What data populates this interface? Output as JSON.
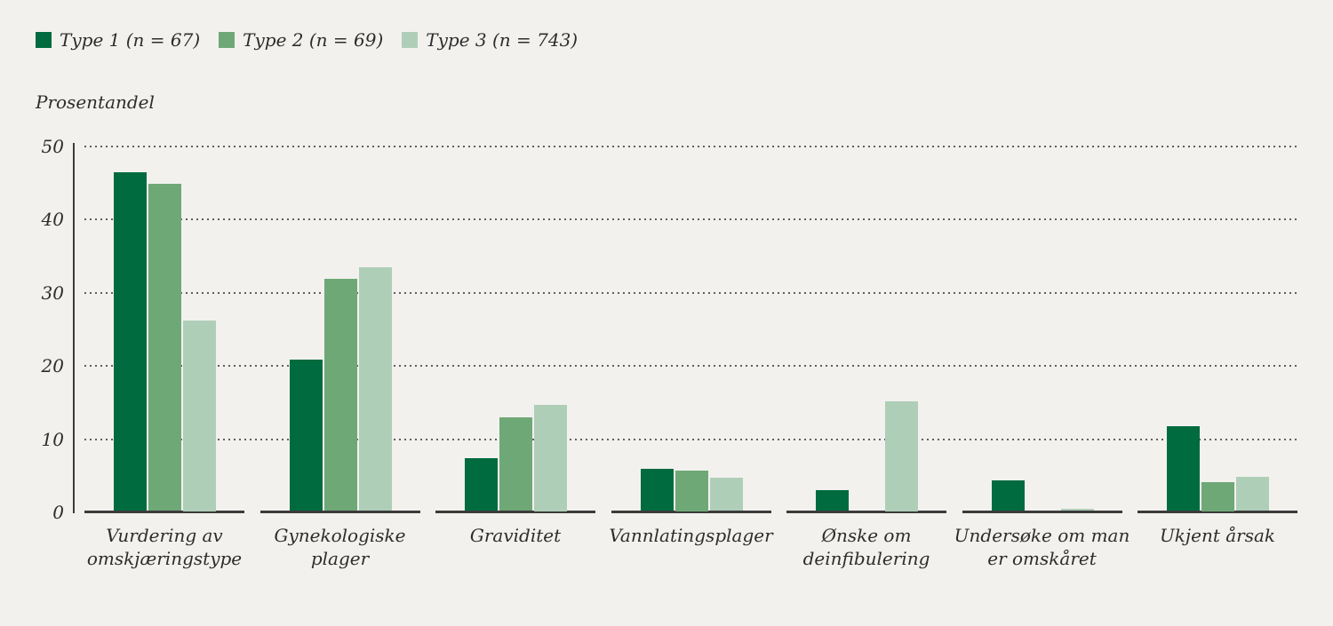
{
  "chart_data": {
    "type": "bar",
    "title": "",
    "ylabel": "Prosentandel",
    "ylim": [
      0,
      50
    ],
    "yticks": [
      0,
      10,
      20,
      30,
      40,
      50
    ],
    "grid": "horizontal dotted gridlines at 10, 20, 30, 40, 50",
    "legend_position": "top-left",
    "background_color": "#f2f1ee",
    "axis_color": "#3b3b3b",
    "categories": [
      "Vurdering av omskjæringstype",
      "Gynekologiske plager",
      "Graviditet",
      "Vannlatingsplager",
      "Ønske om deinfibulering",
      "Undersøke om man er omskåret",
      "Ukjent årsak"
    ],
    "category_label_lines": [
      [
        "Vurdering av",
        "omskjæringstype"
      ],
      [
        "Gynekologiske",
        "plager"
      ],
      [
        "Graviditet"
      ],
      [
        "Vannlatingsplager"
      ],
      [
        "Ønske om",
        "deinfibulering"
      ],
      [
        "Undersøke om man",
        "er omskåret"
      ],
      [
        "Ukjent årsak"
      ]
    ],
    "series": [
      {
        "name": "Type 1 (n = 67)",
        "color": "#006b3e",
        "values": [
          46.2,
          20.7,
          7.2,
          5.8,
          2.8,
          4.2,
          11.6
        ]
      },
      {
        "name": "Type 2 (n = 69)",
        "color": "#6fa877",
        "values": [
          44.7,
          31.7,
          12.8,
          5.5,
          0,
          0,
          4.0
        ]
      },
      {
        "name": "Type 3 (n = 743)",
        "color": "#afceb8",
        "values": [
          26.0,
          33.3,
          14.5,
          4.6,
          15.0,
          0.3,
          4.7
        ]
      }
    ]
  }
}
